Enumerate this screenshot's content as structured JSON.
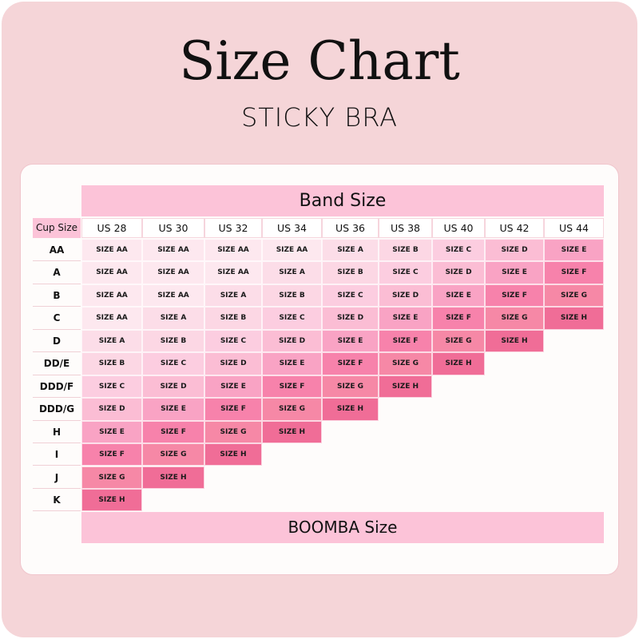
{
  "title": "Size Chart",
  "subtitle": "STICKY BRA",
  "band_label": "Band Size",
  "footer_label": "BOOMBA Size",
  "cup_header": "Cup Size",
  "bands": [
    "US 28",
    "US 30",
    "US 32",
    "US 34",
    "US 36",
    "US 38",
    "US 40",
    "US 42",
    "US 44"
  ],
  "size_colors": {
    "SIZE AA": "#fde8ef",
    "SIZE A": "#fcdde8",
    "SIZE B": "#fcd7e4",
    "SIZE C": "#fccde0",
    "SIZE D": "#fbbdd4",
    "SIZE E": "#f9a3c4",
    "SIZE F": "#f782ab",
    "SIZE G": "#f688a6",
    "SIZE H": "#f06d97"
  },
  "rows": [
    {
      "cup": "AA",
      "sizes": [
        "SIZE AA",
        "SIZE AA",
        "SIZE AA",
        "SIZE AA",
        "SIZE A",
        "SIZE B",
        "SIZE C",
        "SIZE D",
        "SIZE E"
      ]
    },
    {
      "cup": "A",
      "sizes": [
        "SIZE AA",
        "SIZE AA",
        "SIZE AA",
        "SIZE A",
        "SIZE B",
        "SIZE C",
        "SIZE D",
        "SIZE E",
        "SIZE F"
      ]
    },
    {
      "cup": "B",
      "sizes": [
        "SIZE AA",
        "SIZE AA",
        "SIZE A",
        "SIZE B",
        "SIZE C",
        "SIZE D",
        "SIZE E",
        "SIZE F",
        "SIZE G"
      ]
    },
    {
      "cup": "C",
      "sizes": [
        "SIZE AA",
        "SIZE A",
        "SIZE B",
        "SIZE C",
        "SIZE D",
        "SIZE E",
        "SIZE F",
        "SIZE G",
        "SIZE H"
      ]
    },
    {
      "cup": "D",
      "sizes": [
        "SIZE A",
        "SIZE B",
        "SIZE C",
        "SIZE D",
        "SIZE E",
        "SIZE F",
        "SIZE G",
        "SIZE H"
      ]
    },
    {
      "cup": "DD/E",
      "sizes": [
        "SIZE B",
        "SIZE C",
        "SIZE D",
        "SIZE E",
        "SIZE F",
        "SIZE G",
        "SIZE H"
      ]
    },
    {
      "cup": "DDD/F",
      "sizes": [
        "SIZE C",
        "SIZE D",
        "SIZE E",
        "SIZE F",
        "SIZE G",
        "SIZE H"
      ]
    },
    {
      "cup": "DDD/G",
      "sizes": [
        "SIZE D",
        "SIZE E",
        "SIZE F",
        "SIZE G",
        "SIZE H"
      ]
    },
    {
      "cup": "H",
      "sizes": [
        "SIZE E",
        "SIZE F",
        "SIZE G",
        "SIZE H"
      ]
    },
    {
      "cup": "I",
      "sizes": [
        "SIZE F",
        "SIZE G",
        "SIZE H"
      ]
    },
    {
      "cup": "J",
      "sizes": [
        "SIZE G",
        "SIZE H"
      ]
    },
    {
      "cup": "K",
      "sizes": [
        "SIZE H"
      ]
    }
  ]
}
